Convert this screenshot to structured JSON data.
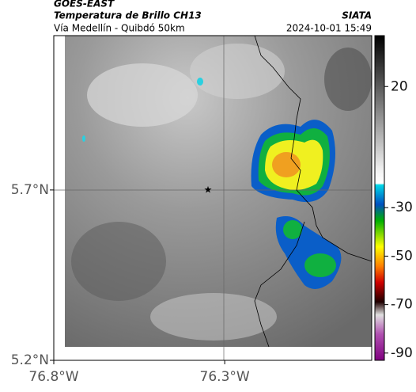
{
  "header": {
    "product": "GOES-EAST",
    "title": "Temperatura de Brillo CH13",
    "agency": "SIATA",
    "subtitle": "Vía Medellín - Quibdó 50km",
    "timestamp": "2024-10-01 15:49"
  },
  "map": {
    "xlim": [
      -76.8,
      -75.87
    ],
    "ylim": [
      5.2,
      6.153
    ],
    "xticks": [
      {
        "value": -76.8,
        "label": "76.8°W"
      },
      {
        "value": -76.3,
        "label": "76.3°W"
      }
    ],
    "yticks": [
      {
        "value": 5.7,
        "label": "5.7°N"
      },
      {
        "value": 5.2,
        "label": "5.2°N"
      }
    ],
    "colorbar": {
      "lim": [
        -93,
        41
      ],
      "ticks": [
        20,
        -30,
        -50,
        -70,
        -90
      ]
    }
  }
}
